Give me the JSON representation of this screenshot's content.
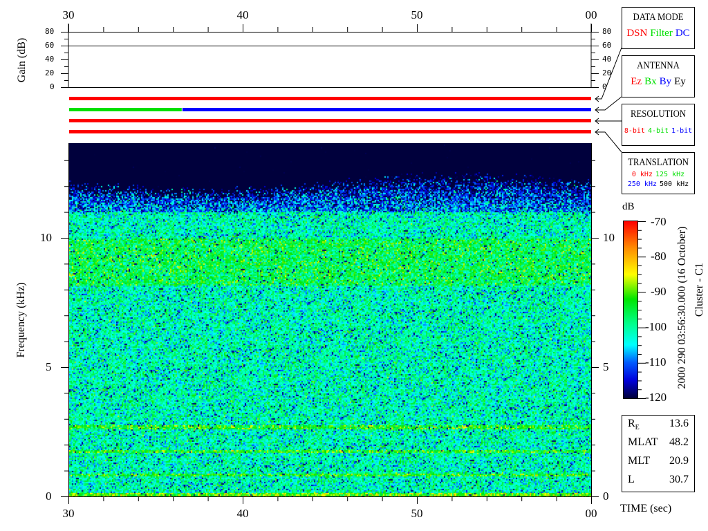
{
  "chart_data": {
    "type": "heatmap",
    "xlabel": "TIME (sec)",
    "ylabel": "Frequency (kHz)",
    "x_ticks": [
      "30",
      "40",
      "50",
      "00"
    ],
    "x_range_sec": [
      30,
      60
    ],
    "y_ticks": [
      "0",
      "5",
      "10"
    ],
    "y_range_khz": [
      0,
      13.7
    ],
    "colorbar": {
      "label": "dB",
      "ticks": [
        "-70",
        "-80",
        "-90",
        "-100",
        "-110",
        "-120"
      ],
      "range": [
        -120,
        -70
      ],
      "colors": [
        "#00003c",
        "#0000ff",
        "#00ffff",
        "#00ff80",
        "#00ff00",
        "#ffff00",
        "#ff8000",
        "#ff0000"
      ]
    },
    "features": {
      "noise_floor_above_khz": 12,
      "enhanced_band_khz": [
        8.2,
        10
      ],
      "narrowband_lines_khz": [
        0.85,
        1.76,
        2.7
      ]
    },
    "gain_panel": {
      "ylabel": "Gain (dB)",
      "ticks": [
        "80",
        "60",
        "40",
        "20",
        "0"
      ],
      "range": [
        0,
        80
      ],
      "gain_db": 60
    },
    "status_bars": [
      {
        "segments": [
          {
            "from": 30,
            "to": 60,
            "color": "#ff0000"
          }
        ]
      },
      {
        "segments": [
          {
            "from": 30,
            "to": 36.5,
            "color": "#00e000"
          },
          {
            "from": 36.5,
            "to": 60,
            "color": "#0000ff"
          }
        ]
      },
      {
        "segments": [
          {
            "from": 30,
            "to": 60,
            "color": "#ff0000"
          }
        ]
      },
      {
        "segments": [
          {
            "from": 30,
            "to": 60,
            "color": "#ff0000"
          }
        ]
      }
    ]
  },
  "legend": {
    "data_mode": {
      "title": "DATA MODE",
      "items": [
        {
          "t": "DSN",
          "c": "#ff0000"
        },
        {
          "t": "Filter",
          "c": "#00e000"
        },
        {
          "t": "DC",
          "c": "#0000ff"
        }
      ]
    },
    "antenna": {
      "title": "ANTENNA",
      "items": [
        {
          "t": "Ez",
          "c": "#ff0000"
        },
        {
          "t": "Bx",
          "c": "#00e000"
        },
        {
          "t": "By",
          "c": "#0000ff"
        },
        {
          "t": "Ey",
          "c": "#000000"
        }
      ]
    },
    "resolution": {
      "title": "RESOLUTION",
      "items": [
        {
          "t": "8-bit",
          "c": "#ff0000"
        },
        {
          "t": "4-bit",
          "c": "#00e000"
        },
        {
          "t": "1-bit",
          "c": "#0000ff"
        }
      ]
    },
    "translation": {
      "title": "TRANSLATION",
      "items": [
        {
          "t": "0 kHz",
          "c": "#ff0000"
        },
        {
          "t": "125 kHz",
          "c": "#00e000"
        },
        {
          "t": "250 kHz",
          "c": "#0000ff"
        },
        {
          "t": "500 kHz",
          "c": "#000000"
        }
      ]
    }
  },
  "info": {
    "date": "2000 290 03:56:30.000 (16 October)",
    "spacecraft": "Cluster - C1",
    "rows": [
      {
        "k": "R",
        "sub": "E",
        "v": "13.6"
      },
      {
        "k": "MLAT",
        "v": "48.2"
      },
      {
        "k": "MLT",
        "v": "20.9"
      },
      {
        "k": "L",
        "v": "30.7"
      }
    ]
  }
}
